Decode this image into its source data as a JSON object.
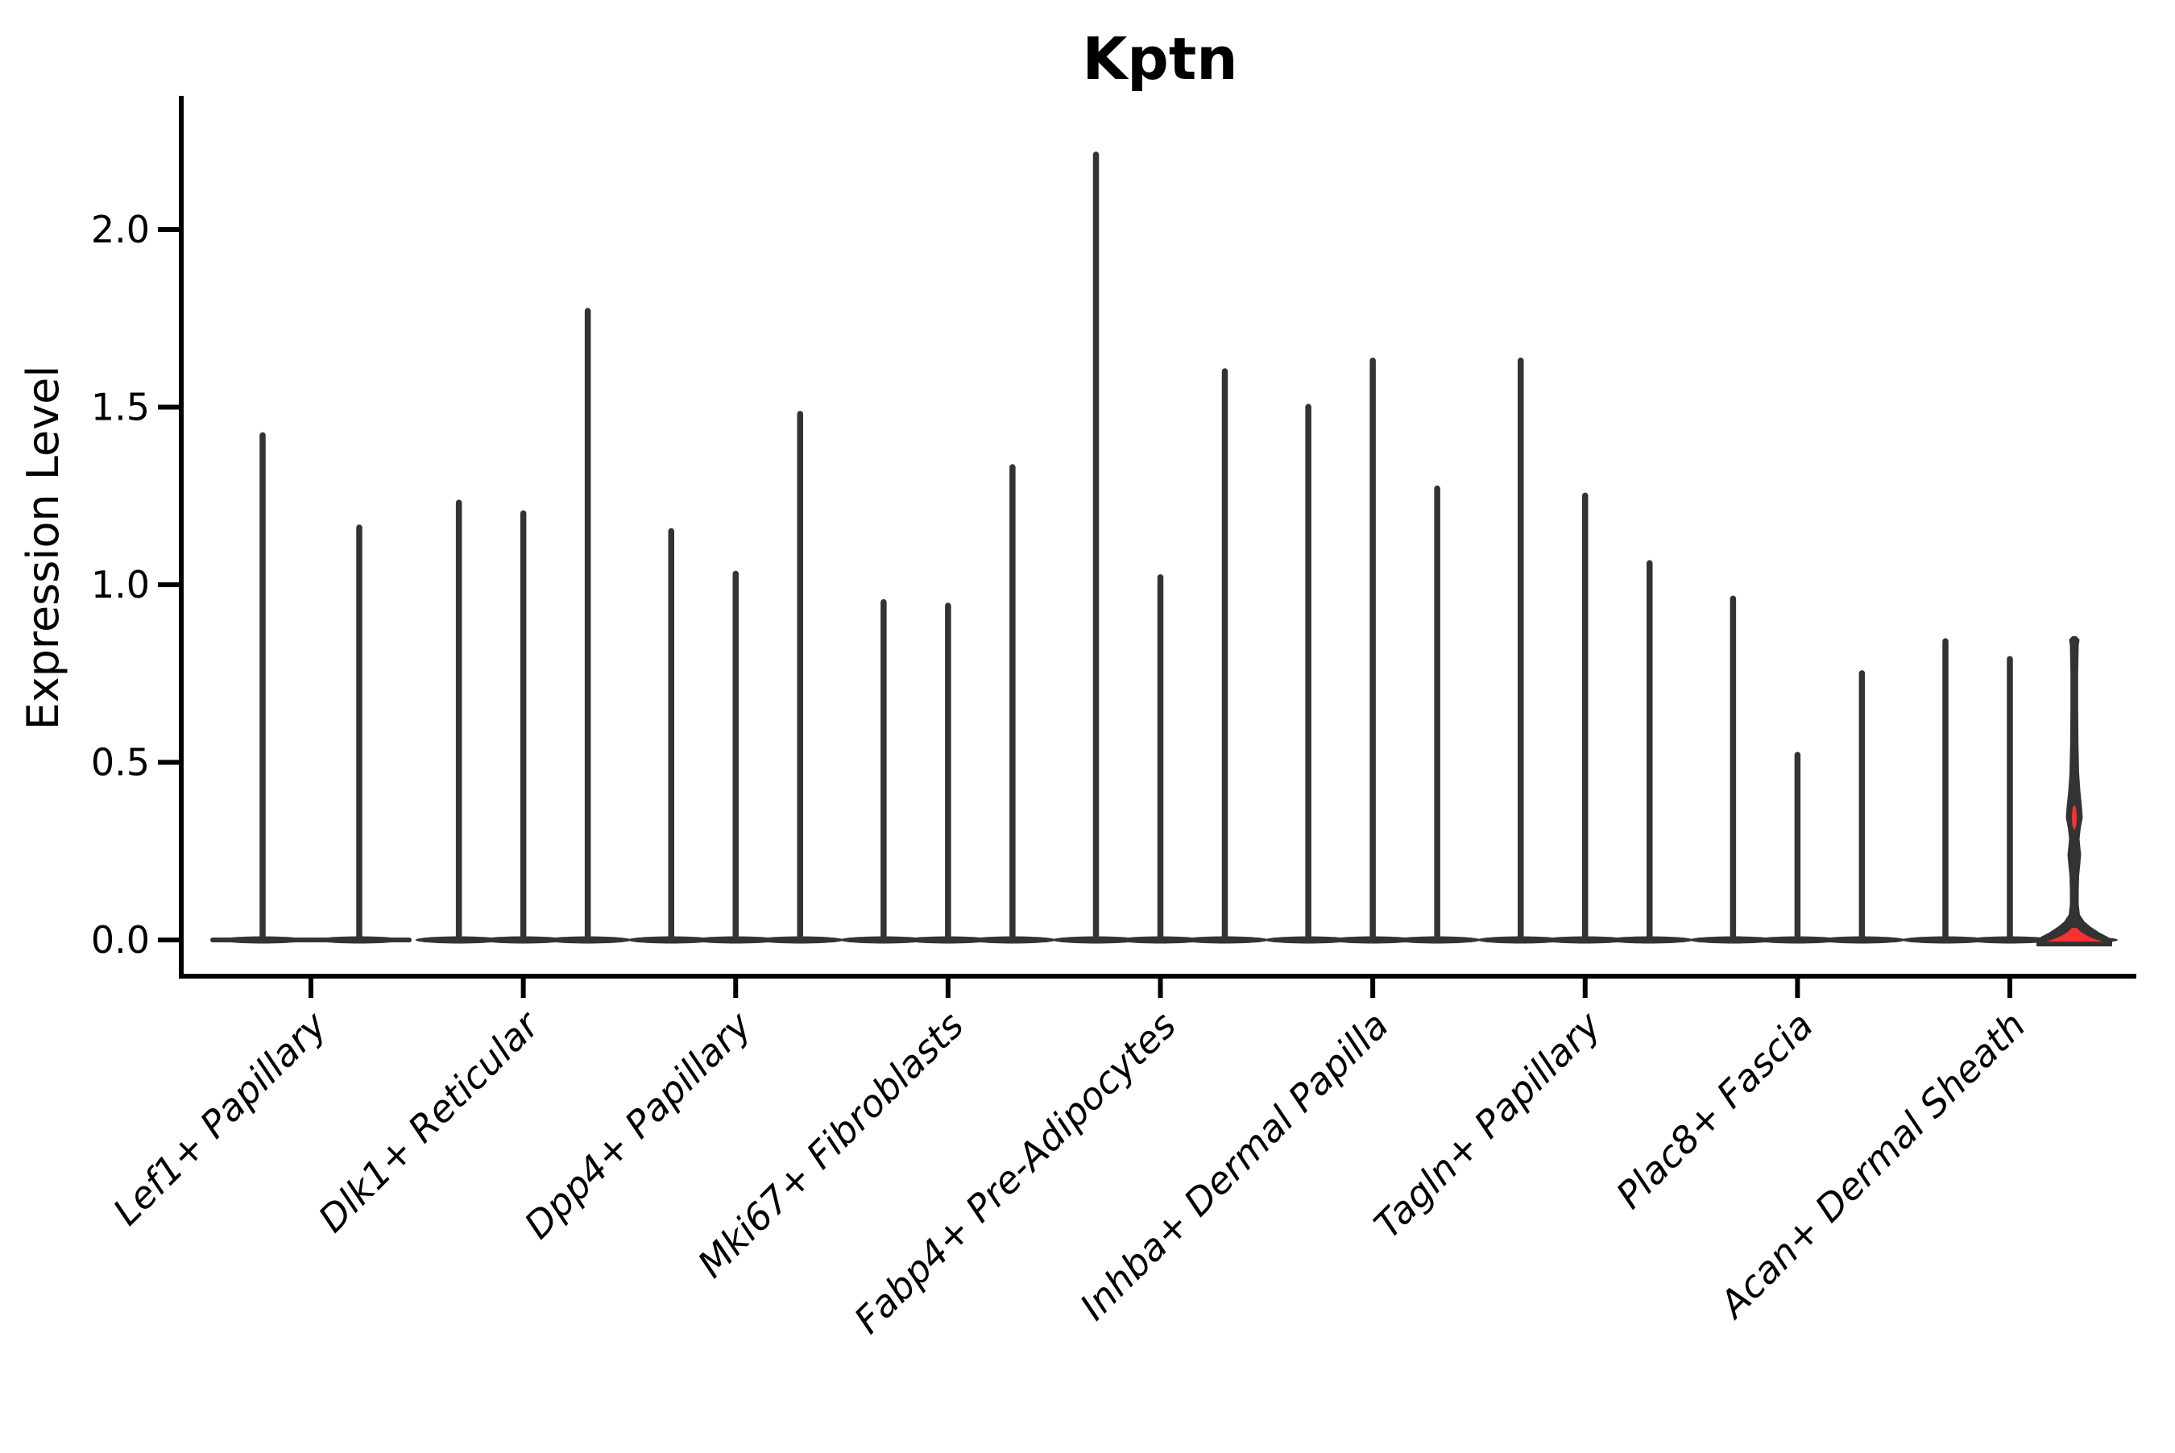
{
  "title": "Kptn",
  "ylabel": "Expression Level",
  "style": {
    "ink_color": "#333333",
    "axis_color": "#000000",
    "highlight_color": "#fb3030",
    "background": "#ffffff"
  },
  "chart_data": {
    "type": "violin",
    "title": "Kptn",
    "xlabel": "",
    "ylabel": "Expression Level",
    "ylim": [
      -0.1,
      2.38
    ],
    "yticks": [
      0.0,
      0.5,
      1.0,
      1.5,
      2.0
    ],
    "ytick_labels": [
      "0.0",
      "0.5",
      "1.0",
      "1.5",
      "2.0"
    ],
    "grid": false,
    "legend": "none",
    "categories": [
      "Lef1+ Papillary",
      "Dlk1+ Reticular",
      "Dpp4+ Papillary",
      "Mki67+ Fibroblasts",
      "Fabp4+ Pre-Adipocytes",
      "Inhba+ Dermal Papilla",
      "Tagln+ Papillary",
      "Plac8+ Fascia",
      "Acan+ Dermal Sheath"
    ],
    "groups": [
      {
        "category": "Lef1+ Papillary",
        "violins": [
          {
            "max": 1.43
          },
          {
            "max": 1.17
          }
        ]
      },
      {
        "category": "Dlk1+ Reticular",
        "violins": [
          {
            "max": 1.24
          },
          {
            "max": 1.21
          },
          {
            "max": 1.78
          }
        ]
      },
      {
        "category": "Dpp4+ Papillary",
        "violins": [
          {
            "max": 1.16
          },
          {
            "max": 1.04
          },
          {
            "max": 1.49
          }
        ]
      },
      {
        "category": "Mki67+ Fibroblasts",
        "violins": [
          {
            "max": 0.96
          },
          {
            "max": 0.95
          },
          {
            "max": 1.34
          }
        ]
      },
      {
        "category": "Fabp4+ Pre-Adipocytes",
        "violins": [
          {
            "max": 2.22
          },
          {
            "max": 1.03
          },
          {
            "max": 1.61
          }
        ]
      },
      {
        "category": "Inhba+ Dermal Papilla",
        "violins": [
          {
            "max": 1.51
          },
          {
            "max": 1.64
          },
          {
            "max": 1.28
          }
        ]
      },
      {
        "category": "Tagln+ Papillary",
        "violins": [
          {
            "max": 1.64
          },
          {
            "max": 1.26
          },
          {
            "max": 1.07
          }
        ]
      },
      {
        "category": "Plac8+ Fascia",
        "violins": [
          {
            "max": 0.97
          },
          {
            "max": 0.53
          },
          {
            "max": 0.76
          }
        ]
      },
      {
        "category": "Acan+ Dermal Sheath",
        "violins": [
          {
            "max": 0.85
          },
          {
            "max": 0.8
          },
          {
            "max": 0.85,
            "highlight": true,
            "profile": [
              [
                0.853,
                2
              ],
              [
                0.845,
                5.5
              ],
              [
                0.83,
                4.5
              ],
              [
                0.75,
                3.8
              ],
              [
                0.65,
                3.8
              ],
              [
                0.55,
                4.2
              ],
              [
                0.47,
                5
              ],
              [
                0.42,
                6.5
              ],
              [
                0.375,
                8.5
              ],
              [
                0.345,
                9.5
              ],
              [
                0.315,
                7
              ],
              [
                0.285,
                5.5
              ],
              [
                0.26,
                6.5
              ],
              [
                0.24,
                7.5
              ],
              [
                0.215,
                6.5
              ],
              [
                0.18,
                5
              ],
              [
                0.14,
                4.5
              ],
              [
                0.1,
                4.5
              ],
              [
                0.07,
                6
              ],
              [
                0.05,
                12
              ],
              [
                0.035,
                20
              ],
              [
                0.02,
                30
              ],
              [
                0.008,
                40
              ],
              [
                0.0,
                46
              ]
            ],
            "red_bulge_value": 0.345,
            "red_base_halfwidth": 36
          }
        ]
      }
    ]
  }
}
